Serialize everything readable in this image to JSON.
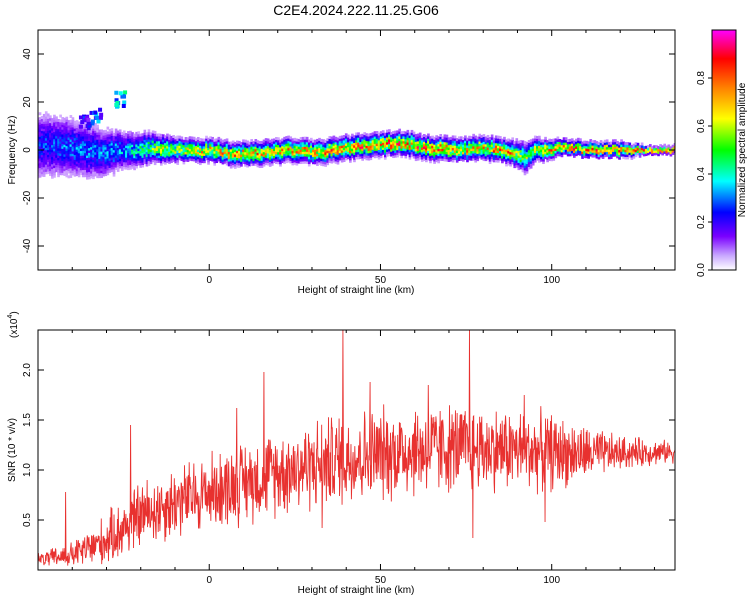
{
  "title": "C2E4.2024.222.11.25.G06",
  "colors": {
    "signal": "#e8312f",
    "background": "#ffffff",
    "axis": "#000000"
  },
  "chart_data": [
    {
      "type": "heatmap",
      "name": "spectrogram",
      "xlabel": "Height of straight line (km)",
      "ylabel": "Frequency (Hz)",
      "xlim": [
        -50,
        136
      ],
      "ylim": [
        -50,
        50
      ],
      "x_ticks": [
        0,
        50,
        100
      ],
      "x_tick_labels": [
        "0",
        "50",
        "100"
      ],
      "y_ticks": [
        -40,
        -20,
        0,
        20,
        40
      ],
      "y_tick_labels": [
        "-40",
        "-20",
        "0",
        "20",
        "40"
      ],
      "colorbar": {
        "label": "Normalized spectral amplitude",
        "range": [
          0.0,
          1.0
        ],
        "ticks": [
          0.0,
          0.2,
          0.4,
          0.6,
          0.8
        ],
        "tick_labels": [
          "0.0",
          "0.2",
          "0.4",
          "0.6",
          "0.8"
        ],
        "colormap": [
          "#ffffff",
          "#7a00ff",
          "#0000ff",
          "#00ffff",
          "#00ff00",
          "#ffff00",
          "#ff8000",
          "#ff0000",
          "#ff00ff"
        ]
      },
      "ridge": {
        "x": [
          -48,
          -40,
          -32,
          -24,
          -16,
          -8,
          0,
          8,
          16,
          24,
          32,
          40,
          48,
          56,
          64,
          72,
          80,
          88,
          92,
          96,
          104,
          112,
          120,
          128,
          136
        ],
        "y": [
          2,
          1,
          -1,
          0,
          1,
          0,
          0,
          -2,
          -1,
          0,
          -1,
          1,
          2,
          3,
          1,
          0,
          1,
          -1,
          -3,
          0,
          1,
          0,
          0,
          0,
          0
        ],
        "spread": [
          9,
          8,
          7,
          5,
          4,
          3,
          3,
          3,
          3,
          3,
          3,
          3,
          3,
          3,
          3,
          3,
          3,
          3,
          4,
          3,
          2,
          2,
          2,
          1,
          1
        ],
        "peak_amplitude": [
          0.3,
          0.35,
          0.35,
          0.4,
          0.6,
          0.7,
          0.75,
          0.8,
          0.8,
          0.8,
          0.8,
          0.85,
          0.85,
          0.9,
          0.85,
          0.8,
          0.8,
          0.8,
          0.6,
          0.7,
          0.85,
          0.9,
          0.9,
          0.95,
          0.95
        ]
      },
      "outliers": [
        {
          "x": -26,
          "y": 21,
          "amplitude": 0.3
        },
        {
          "x": -33,
          "y": 14,
          "amplitude": 0.25
        },
        {
          "x": -36,
          "y": 12,
          "amplitude": 0.2
        }
      ]
    },
    {
      "type": "line",
      "name": "snr",
      "xlabel": "Height of straight line (km)",
      "ylabel": "SNR (10 * v/v)",
      "multiplier_label": "(x10",
      "multiplier_exp": "4",
      "multiplier_close": ")",
      "xlim": [
        -50,
        136
      ],
      "ylim": [
        0,
        2.4
      ],
      "x_ticks": [
        0,
        50,
        100
      ],
      "x_tick_labels": [
        "0",
        "50",
        "100"
      ],
      "y_ticks": [
        0.5,
        1.0,
        1.5,
        2.0
      ],
      "y_tick_labels": [
        "0.5",
        "1.0",
        "1.5",
        "2.0"
      ],
      "trend": {
        "x": [
          -50,
          -40,
          -35,
          -30,
          -25,
          -20,
          -10,
          0,
          10,
          20,
          30,
          40,
          50,
          60,
          70,
          80,
          90,
          100,
          110,
          120,
          130,
          136
        ],
        "y": [
          0.1,
          0.15,
          0.22,
          0.3,
          0.42,
          0.55,
          0.68,
          0.78,
          0.88,
          0.98,
          1.05,
          1.12,
          1.16,
          1.2,
          1.22,
          1.22,
          1.2,
          1.18,
          1.16,
          1.17,
          1.18,
          1.18
        ]
      },
      "noise_amplitude": {
        "x": [
          -50,
          -40,
          -30,
          -20,
          0,
          20,
          40,
          60,
          80,
          100,
          120,
          136
        ],
        "y": [
          0.08,
          0.15,
          0.3,
          0.4,
          0.45,
          0.5,
          0.55,
          0.55,
          0.5,
          0.45,
          0.2,
          0.12
        ]
      },
      "spikes": [
        {
          "x": -42,
          "y": 0.78
        },
        {
          "x": -23,
          "y": 1.45
        },
        {
          "x": 8,
          "y": 1.62
        },
        {
          "x": 16,
          "y": 1.98
        },
        {
          "x": 39,
          "y": 2.4
        },
        {
          "x": 47,
          "y": 1.88
        },
        {
          "x": 64,
          "y": 1.85
        },
        {
          "x": 76,
          "y": 2.4
        },
        {
          "x": 92,
          "y": 1.75
        }
      ],
      "dips": [
        {
          "x": 33,
          "y": 0.42
        },
        {
          "x": 77,
          "y": 0.32
        },
        {
          "x": 98,
          "y": 0.48
        }
      ]
    }
  ]
}
